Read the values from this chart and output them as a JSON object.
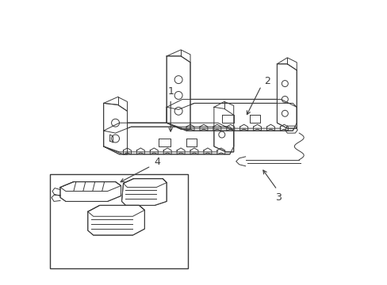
{
  "bg_color": "#ffffff",
  "line_color": "#3a3a3a",
  "figsize": [
    4.89,
    3.6
  ],
  "dpi": 100,
  "label_fontsize": 9,
  "lw": 0.7
}
